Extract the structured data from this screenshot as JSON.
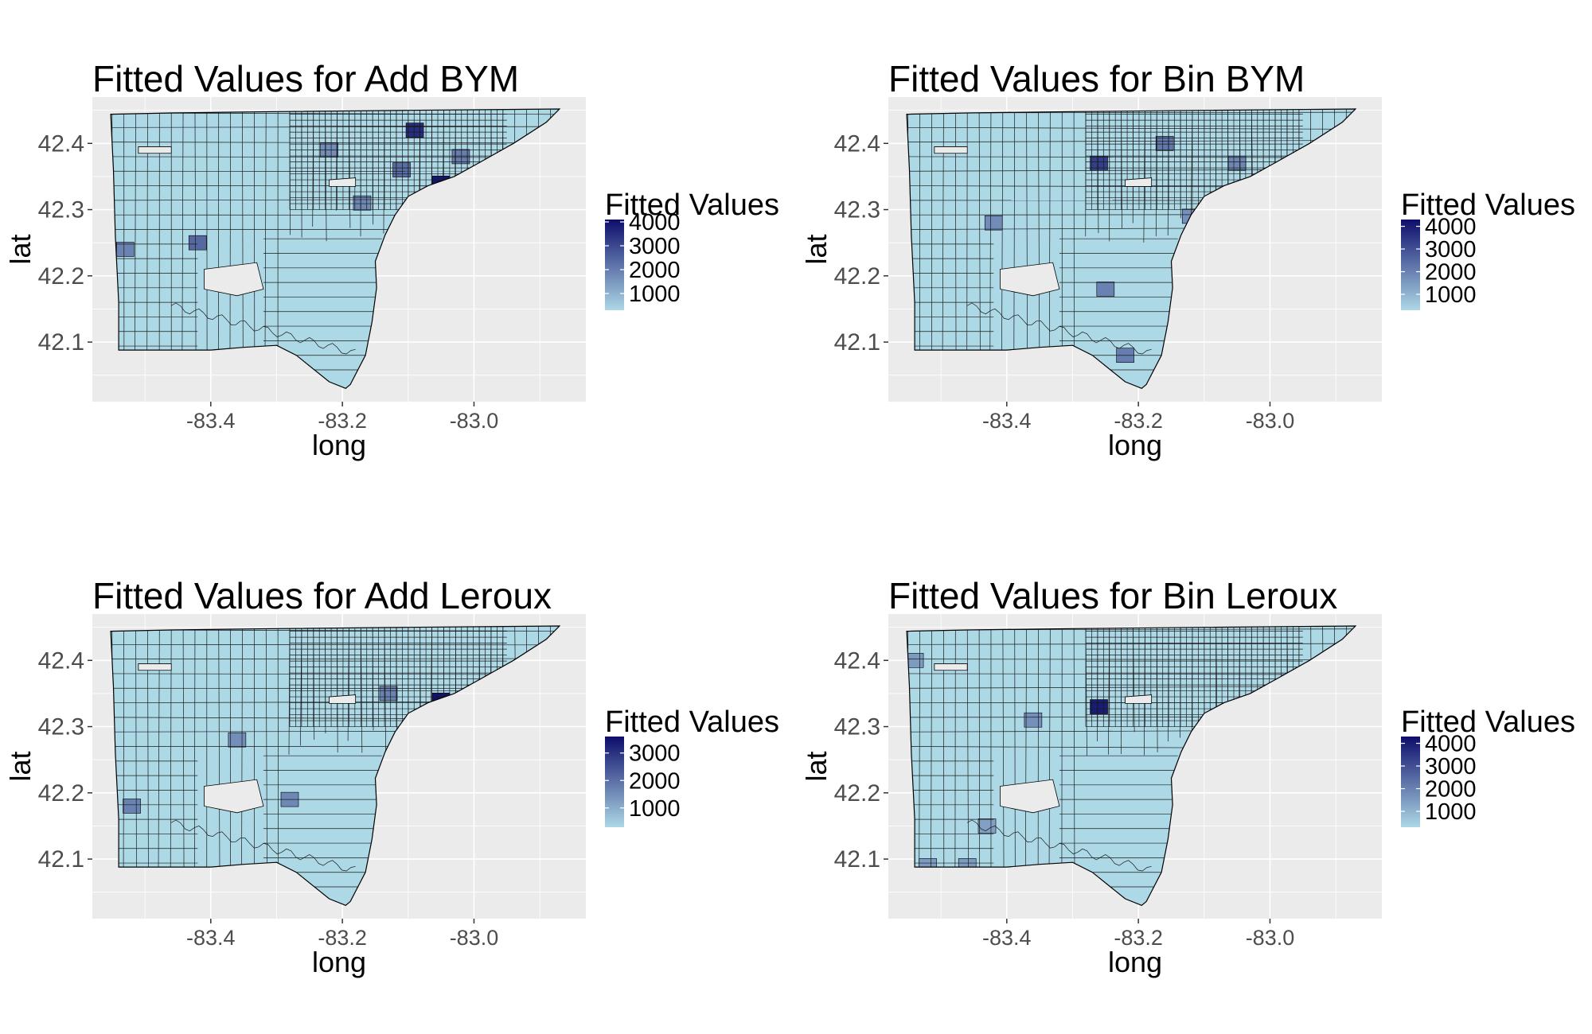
{
  "axis": {
    "xlabel": "long",
    "ylabel": "lat",
    "xticks": [
      "-83.4",
      "-83.2",
      "-83.0"
    ],
    "yticks": [
      "42.1",
      "42.2",
      "42.3",
      "42.4"
    ],
    "xticks_values": [
      -83.4,
      -83.2,
      -83.0
    ],
    "yticks_values": [
      42.1,
      42.2,
      42.3,
      42.4
    ],
    "xlim": [
      -83.58,
      -82.83
    ],
    "ylim": [
      42.01,
      42.47
    ]
  },
  "colors": {
    "panel_background": "#ebebeb",
    "grid": "#ffffff",
    "low": "#add8e6",
    "high": "#0d0d6b",
    "border": "#000000"
  },
  "panels": [
    {
      "title": "Fitted Values for Add BYM",
      "legend": {
        "title": "Fitted Values",
        "ticks": [
          "4000",
          "3000",
          "2000",
          "1000"
        ],
        "tick_values": [
          4000,
          3000,
          2000,
          1000
        ],
        "range": [
          300,
          4100
        ]
      },
      "highlights": [
        {
          "long": -83.42,
          "lat": 42.25,
          "value": 2400
        },
        {
          "long": -83.53,
          "lat": 42.24,
          "value": 1900
        },
        {
          "long": -83.05,
          "lat": 42.34,
          "value": 3900
        },
        {
          "long": -83.09,
          "lat": 42.42,
          "value": 3500
        },
        {
          "long": -83.17,
          "lat": 42.31,
          "value": 1800
        },
        {
          "long": -83.11,
          "lat": 42.36,
          "value": 2300
        },
        {
          "long": -83.22,
          "lat": 42.39,
          "value": 1700
        },
        {
          "long": -83.02,
          "lat": 42.38,
          "value": 2000
        }
      ]
    },
    {
      "title": "Fitted Values for Bin BYM",
      "legend": {
        "title": "Fitted Values",
        "ticks": [
          "4000",
          "3000",
          "2000",
          "1000"
        ],
        "tick_values": [
          4000,
          3000,
          2000,
          1000
        ],
        "range": [
          300,
          4300
        ]
      },
      "highlights": [
        {
          "long": -83.26,
          "lat": 42.37,
          "value": 3300
        },
        {
          "long": -83.25,
          "lat": 42.18,
          "value": 2000
        },
        {
          "long": -83.22,
          "lat": 42.08,
          "value": 2100
        },
        {
          "long": -83.42,
          "lat": 42.28,
          "value": 1800
        },
        {
          "long": -83.12,
          "lat": 42.29,
          "value": 1700
        },
        {
          "long": -83.16,
          "lat": 42.4,
          "value": 2200
        },
        {
          "long": -83.05,
          "lat": 42.37,
          "value": 1900
        }
      ]
    },
    {
      "title": "Fitted Values for Add Leroux",
      "legend": {
        "title": "Fitted Values",
        "ticks": [
          "3000",
          "2000",
          "1000"
        ],
        "tick_values": [
          3000,
          2000,
          1000
        ],
        "range": [
          300,
          3600
        ]
      },
      "highlights": [
        {
          "long": -83.05,
          "lat": 42.34,
          "value": 3500
        },
        {
          "long": -83.52,
          "lat": 42.18,
          "value": 1700
        },
        {
          "long": -83.36,
          "lat": 42.28,
          "value": 1500
        },
        {
          "long": -83.28,
          "lat": 42.19,
          "value": 1600
        },
        {
          "long": -83.13,
          "lat": 42.35,
          "value": 1700
        }
      ]
    },
    {
      "title": "Fitted Values for Bin Leroux",
      "legend": {
        "title": "Fitted Values",
        "ticks": [
          "4000",
          "3000",
          "2000",
          "1000"
        ],
        "tick_values": [
          4000,
          3000,
          2000,
          1000
        ],
        "range": [
          300,
          4300
        ]
      },
      "highlights": [
        {
          "long": -83.26,
          "lat": 42.33,
          "value": 4000
        },
        {
          "long": -83.52,
          "lat": 42.09,
          "value": 1500
        },
        {
          "long": -83.46,
          "lat": 42.09,
          "value": 1500
        },
        {
          "long": -83.54,
          "lat": 42.4,
          "value": 1500
        },
        {
          "long": -83.36,
          "lat": 42.31,
          "value": 1700
        },
        {
          "long": -83.43,
          "lat": 42.15,
          "value": 1400
        }
      ]
    }
  ]
}
